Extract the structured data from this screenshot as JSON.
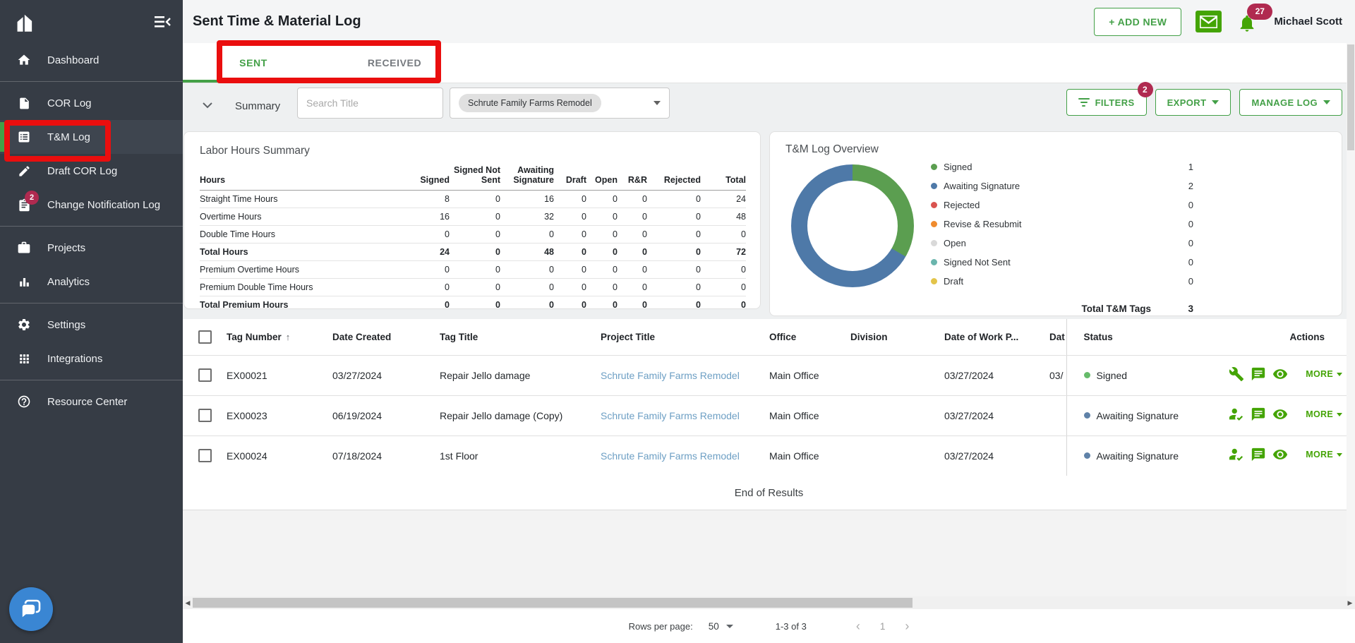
{
  "header": {
    "title": "Sent Time & Material Log",
    "add_new_label": "+ ADD NEW",
    "notification_count": "27",
    "user_name": "Michael Scott"
  },
  "sidebar": {
    "groups": [
      [
        {
          "label": "Dashboard",
          "icon": "home"
        }
      ],
      [
        {
          "label": "COR Log",
          "icon": "document"
        },
        {
          "label": "T&M Log",
          "icon": "list",
          "active": true
        },
        {
          "label": "Draft COR Log",
          "icon": "pencil"
        },
        {
          "label": "Change Notification Log",
          "icon": "clipboard",
          "badge": "2"
        }
      ],
      [
        {
          "label": "Projects",
          "icon": "briefcase"
        },
        {
          "label": "Analytics",
          "icon": "bar-chart"
        }
      ],
      [
        {
          "label": "Settings",
          "icon": "gear"
        },
        {
          "label": "Integrations",
          "icon": "grid"
        }
      ],
      [
        {
          "label": "Resource Center",
          "icon": "help"
        }
      ]
    ]
  },
  "tabs": [
    {
      "label": "SENT",
      "active": true
    },
    {
      "label": "RECEIVED",
      "active": false
    }
  ],
  "toolbar": {
    "summary_label": "Summary",
    "search_placeholder": "Search Title",
    "project_filter_chip": "Schrute Family Farms Remodel",
    "filters_label": "FILTERS",
    "filters_badge": "2",
    "export_label": "EXPORT",
    "manage_log_label": "MANAGE LOG"
  },
  "labor_hours": {
    "title": "Labor Hours Summary",
    "columns": [
      "Hours",
      "Signed",
      "Signed Not Sent",
      "Awaiting Signature",
      "Draft",
      "Open",
      "R&R",
      "Rejected",
      "Total"
    ],
    "rows": [
      {
        "label": "Straight Time Hours",
        "values": [
          "8",
          "0",
          "16",
          "0",
          "0",
          "0",
          "0",
          "24"
        ],
        "bold": false
      },
      {
        "label": "Overtime Hours",
        "values": [
          "16",
          "0",
          "32",
          "0",
          "0",
          "0",
          "0",
          "48"
        ],
        "bold": false
      },
      {
        "label": "Double Time Hours",
        "values": [
          "0",
          "0",
          "0",
          "0",
          "0",
          "0",
          "0",
          "0"
        ],
        "bold": false
      },
      {
        "label": "Total Hours",
        "values": [
          "24",
          "0",
          "48",
          "0",
          "0",
          "0",
          "0",
          "72"
        ],
        "bold": true
      },
      {
        "label": "Premium Overtime Hours",
        "values": [
          "0",
          "0",
          "0",
          "0",
          "0",
          "0",
          "0",
          "0"
        ],
        "bold": false
      },
      {
        "label": "Premium Double Time Hours",
        "values": [
          "0",
          "0",
          "0",
          "0",
          "0",
          "0",
          "0",
          "0"
        ],
        "bold": false
      },
      {
        "label": "Total Premium Hours",
        "values": [
          "0",
          "0",
          "0",
          "0",
          "0",
          "0",
          "0",
          "0"
        ],
        "bold": true
      }
    ]
  },
  "overview": {
    "title": "T&M Log Overview",
    "legend": [
      {
        "label": "Signed",
        "value": "1",
        "color": "#5b9e50"
      },
      {
        "label": "Awaiting Signature",
        "value": "2",
        "color": "#4e79a8"
      },
      {
        "label": "Rejected",
        "value": "0",
        "color": "#d9534f"
      },
      {
        "label": "Revise & Resubmit",
        "value": "0",
        "color": "#ef8b2e"
      },
      {
        "label": "Open",
        "value": "0",
        "color": "#d9d9d9"
      },
      {
        "label": "Signed Not Sent",
        "value": "0",
        "color": "#6ab5ad"
      },
      {
        "label": "Draft",
        "value": "0",
        "color": "#e3c44a"
      }
    ],
    "total_label": "Total T&M Tags",
    "total_value": "3"
  },
  "chart_data": {
    "type": "pie",
    "title": "T&M Log Overview",
    "categories": [
      "Signed",
      "Awaiting Signature",
      "Rejected",
      "Revise & Resubmit",
      "Open",
      "Signed Not Sent",
      "Draft"
    ],
    "values": [
      1,
      2,
      0,
      0,
      0,
      0,
      0
    ],
    "colors": [
      "#5b9e50",
      "#4e79a8",
      "#d9534f",
      "#ef8b2e",
      "#d9d9d9",
      "#6ab5ad",
      "#e3c44a"
    ],
    "total": 3,
    "legend_position": "right",
    "donut": true
  },
  "table": {
    "columns": [
      {
        "label": ""
      },
      {
        "label": "Tag Number",
        "sort": "↑"
      },
      {
        "label": "Date Created"
      },
      {
        "label": "Tag Title"
      },
      {
        "label": "Project Title"
      },
      {
        "label": "Office"
      },
      {
        "label": "Division"
      },
      {
        "label": "Date of Work P..."
      },
      {
        "label": "Dat"
      },
      {
        "label": "Status"
      },
      {
        "label": "Actions"
      }
    ],
    "status_colors": {
      "Signed": "#66bb6a",
      "Awaiting Signature": "#5f82a8"
    },
    "more_label": "MORE",
    "rows": [
      {
        "tag_number": "EX00021",
        "date_created": "03/27/2024",
        "tag_title": "Repair Jello damage",
        "project_title": "Schrute Family Farms Remodel",
        "office": "Main Office",
        "division": "",
        "date_of_work": "03/27/2024",
        "date_partial": "03/",
        "status": "Signed",
        "actions": [
          "wrench",
          "comment",
          "eye"
        ]
      },
      {
        "tag_number": "EX00023",
        "date_created": "06/19/2024",
        "tag_title": "Repair Jello damage (Copy)",
        "project_title": "Schrute Family Farms Remodel",
        "office": "Main Office",
        "division": "",
        "date_of_work": "03/27/2024",
        "date_partial": "",
        "status": "Awaiting Signature",
        "actions": [
          "person-check",
          "comment",
          "eye"
        ]
      },
      {
        "tag_number": "EX00024",
        "date_created": "07/18/2024",
        "tag_title": "1st Floor",
        "project_title": "Schrute Family Farms Remodel",
        "office": "Main Office",
        "division": "",
        "date_of_work": "03/27/2024",
        "date_partial": "",
        "status": "Awaiting Signature",
        "actions": [
          "person-check",
          "comment",
          "eye"
        ]
      }
    ],
    "end_of_results": "End of Results"
  },
  "footer": {
    "rows_per_page_label": "Rows per page:",
    "rows_per_page_value": "50",
    "range_label": "1-3 of 3",
    "prev_icon": "‹",
    "page_number": "1",
    "next_icon": "›"
  }
}
